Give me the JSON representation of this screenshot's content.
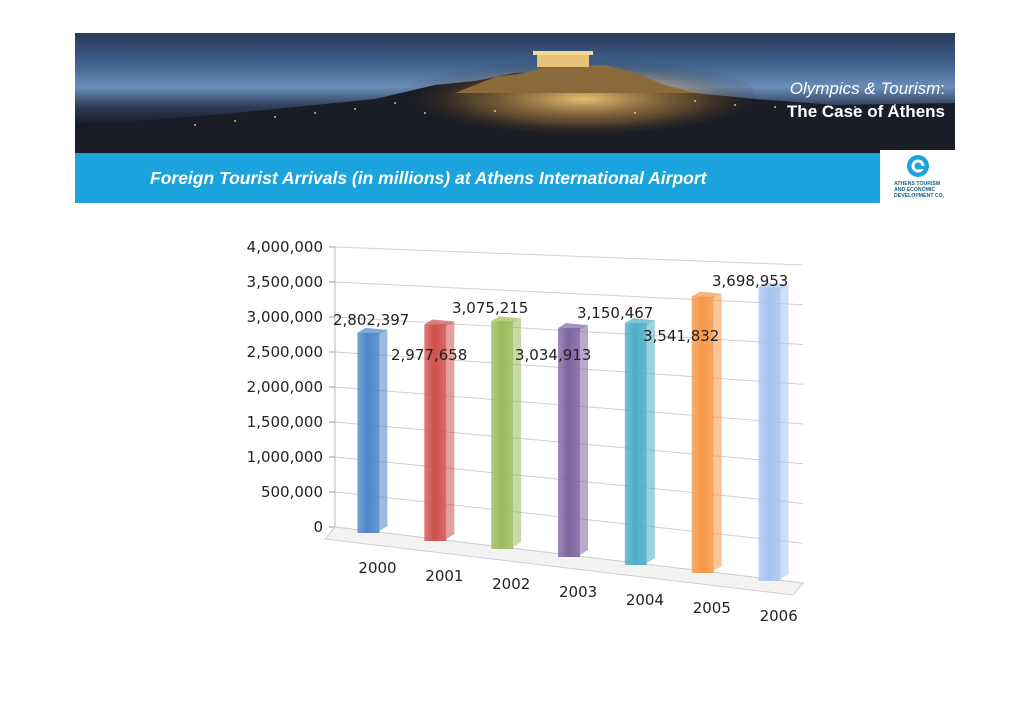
{
  "header": {
    "title_line1_italic": "Olympics & Tourism",
    "title_line1_colon": ":",
    "title_line2": "The Case of  Athens"
  },
  "strip": {
    "subtitle": "Foreign Tourist Arrivals (in millions) at Athens International Airport"
  },
  "logo": {
    "line1": "ATHENS TOURISM",
    "line2": "AND ECONOMIC",
    "line3": "DEVELOPMENT CO."
  },
  "chart_data": {
    "type": "bar",
    "title": "Foreign Tourist Arrivals (in millions) at Athens International Airport",
    "categories": [
      "2000",
      "2001",
      "2002",
      "2003",
      "2004",
      "2005",
      "2006"
    ],
    "values": [
      2802397,
      2977658,
      3075215,
      3034913,
      3150467,
      3541832,
      3698953
    ],
    "value_labels": [
      "2,802,397",
      "2,977,658",
      "3,075,215",
      "3,034,913",
      "3,150,467",
      "3,541,832",
      "3,698,953"
    ],
    "yticks": [
      "0",
      "500,000",
      "1,000,000",
      "1,500,000",
      "2,000,000",
      "2,500,000",
      "3,000,000",
      "3,500,000",
      "4,000,000"
    ],
    "ylim": [
      0,
      4000000
    ],
    "grid": true,
    "legend": "none",
    "bar_colors": [
      "#4a86c8",
      "#d0504d",
      "#9bbb59",
      "#8064a2",
      "#4bacc6",
      "#f79646",
      "#a7c4ee"
    ]
  }
}
